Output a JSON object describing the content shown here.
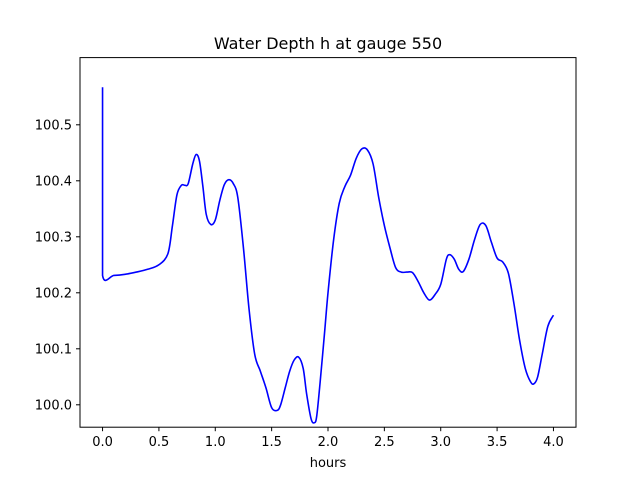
{
  "chart_data": {
    "type": "line",
    "title": "Water Depth h at gauge 550",
    "xlabel": "hours",
    "ylabel": "",
    "xlim": [
      -0.2,
      4.2
    ],
    "ylim": [
      99.96,
      100.62
    ],
    "grid": false,
    "xticks": [
      0.0,
      0.5,
      1.0,
      1.5,
      2.0,
      2.5,
      3.0,
      3.5,
      4.0
    ],
    "xtick_labels": [
      "0.0",
      "0.5",
      "1.0",
      "1.5",
      "2.0",
      "2.5",
      "3.0",
      "3.5",
      "4.0"
    ],
    "yticks": [
      100.0,
      100.1,
      100.2,
      100.3,
      100.4,
      100.5
    ],
    "ytick_labels": [
      "100.0",
      "100.1",
      "100.2",
      "100.3",
      "100.4",
      "100.5"
    ],
    "series": [
      {
        "color": "#0000ff",
        "x": [
          0.0,
          0.0,
          0.0,
          0.1,
          0.2,
          0.3,
          0.4,
          0.5,
          0.58,
          0.62,
          0.66,
          0.7,
          0.73,
          0.76,
          0.8,
          0.83,
          0.86,
          0.89,
          0.92,
          0.96,
          1.0,
          1.04,
          1.08,
          1.12,
          1.16,
          1.2,
          1.25,
          1.3,
          1.35,
          1.4,
          1.45,
          1.5,
          1.55,
          1.58,
          1.62,
          1.66,
          1.7,
          1.74,
          1.78,
          1.81,
          1.85,
          1.88,
          1.9,
          1.93,
          1.97,
          2.0,
          2.05,
          2.1,
          2.15,
          2.2,
          2.25,
          2.3,
          2.35,
          2.4,
          2.45,
          2.5,
          2.55,
          2.6,
          2.65,
          2.7,
          2.75,
          2.8,
          2.85,
          2.9,
          2.95,
          3.0,
          3.05,
          3.08,
          3.12,
          3.16,
          3.2,
          3.25,
          3.3,
          3.35,
          3.4,
          3.45,
          3.5,
          3.55,
          3.6,
          3.65,
          3.7,
          3.75,
          3.8,
          3.83,
          3.86,
          3.9,
          3.95,
          4.0
        ],
        "y": [
          100.567,
          100.35,
          100.231,
          100.231,
          100.233,
          100.237,
          100.242,
          100.25,
          100.27,
          100.32,
          100.375,
          100.392,
          100.392,
          100.395,
          100.43,
          100.447,
          100.435,
          100.39,
          100.34,
          100.322,
          100.33,
          100.365,
          100.393,
          100.402,
          100.395,
          100.37,
          100.28,
          100.17,
          100.09,
          100.06,
          100.03,
          99.995,
          99.99,
          100.0,
          100.03,
          100.06,
          100.08,
          100.085,
          100.065,
          100.02,
          99.975,
          99.968,
          99.98,
          100.04,
          100.13,
          100.2,
          100.295,
          100.36,
          100.39,
          100.41,
          100.44,
          100.457,
          100.455,
          100.43,
          100.37,
          100.32,
          100.28,
          100.245,
          100.237,
          100.237,
          100.236,
          100.22,
          100.2,
          100.187,
          100.197,
          100.215,
          100.26,
          100.268,
          100.26,
          100.242,
          100.238,
          100.26,
          100.295,
          100.322,
          100.32,
          100.29,
          100.262,
          100.255,
          100.235,
          100.18,
          100.115,
          100.065,
          100.04,
          100.038,
          100.05,
          100.09,
          100.14,
          100.16
        ]
      }
    ]
  }
}
